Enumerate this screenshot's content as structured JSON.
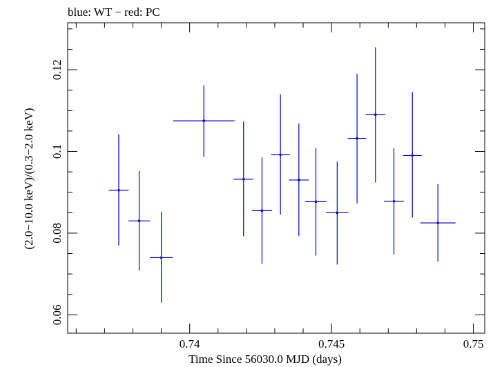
{
  "chart_data": {
    "type": "scatter",
    "title": "blue: WT − red: PC",
    "xlabel": "Time Since 56030.0 MJD (days)",
    "ylabel": "(2.0−10.0 keV)/(0.3−2.0 keV)",
    "xlim": [
      0.7357,
      0.7504
    ],
    "ylim": [
      0.0555,
      0.1315
    ],
    "xticks": [
      0.74,
      0.745,
      0.75
    ],
    "xtick_labels": [
      "0.74",
      "0.745",
      "0.75"
    ],
    "yticks": [
      0.06,
      0.08,
      0.1,
      0.12
    ],
    "ytick_labels": [
      "0.06",
      "0.08",
      "0.1",
      "0.12"
    ],
    "series": [
      {
        "name": "WT",
        "color": "#0000cc",
        "points": [
          {
            "x": 0.7375,
            "xerr": 0.00035,
            "y": 0.0905,
            "ylo": 0.077,
            "yhi": 0.1042
          },
          {
            "x": 0.73822,
            "xerr": 0.00038,
            "y": 0.083,
            "ylo": 0.0708,
            "yhi": 0.0952
          },
          {
            "x": 0.739,
            "xerr": 0.0004,
            "y": 0.074,
            "ylo": 0.063,
            "yhi": 0.0852
          },
          {
            "x": 0.7405,
            "xerr": 0.00108,
            "y": 0.1075,
            "ylo": 0.0987,
            "yhi": 0.1162
          },
          {
            "x": 0.7419,
            "xerr": 0.00035,
            "y": 0.0932,
            "ylo": 0.0792,
            "yhi": 0.1073
          },
          {
            "x": 0.74255,
            "xerr": 0.00035,
            "y": 0.0855,
            "ylo": 0.0725,
            "yhi": 0.0985
          },
          {
            "x": 0.7432,
            "xerr": 0.00033,
            "y": 0.0992,
            "ylo": 0.0845,
            "yhi": 0.114
          },
          {
            "x": 0.74385,
            "xerr": 0.00035,
            "y": 0.093,
            "ylo": 0.0793,
            "yhi": 0.1068
          },
          {
            "x": 0.74445,
            "xerr": 0.00038,
            "y": 0.0877,
            "ylo": 0.0745,
            "yhi": 0.1008
          },
          {
            "x": 0.7452,
            "xerr": 0.0004,
            "y": 0.085,
            "ylo": 0.0723,
            "yhi": 0.0975
          },
          {
            "x": 0.7459,
            "xerr": 0.00033,
            "y": 0.1032,
            "ylo": 0.0873,
            "yhi": 0.119
          },
          {
            "x": 0.74655,
            "xerr": 0.00035,
            "y": 0.109,
            "ylo": 0.0924,
            "yhi": 0.1255
          },
          {
            "x": 0.7472,
            "xerr": 0.00035,
            "y": 0.0878,
            "ylo": 0.0748,
            "yhi": 0.1008
          },
          {
            "x": 0.74785,
            "xerr": 0.00033,
            "y": 0.099,
            "ylo": 0.0838,
            "yhi": 0.1145
          },
          {
            "x": 0.74875,
            "xerr": 0.00062,
            "y": 0.0825,
            "ylo": 0.073,
            "yhi": 0.092
          }
        ]
      }
    ]
  }
}
